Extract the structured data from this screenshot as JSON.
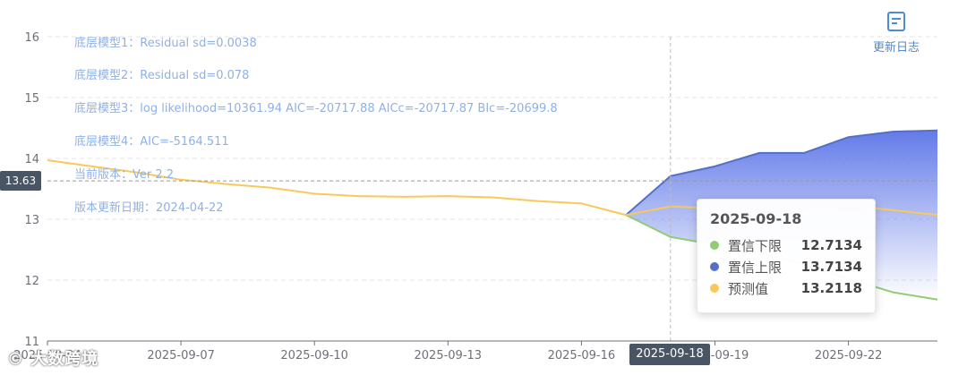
{
  "chart_data": {
    "type": "area",
    "ylim": [
      11,
      16
    ],
    "yticks": [
      11,
      12,
      13,
      14,
      15,
      16
    ],
    "x_dates": [
      "2025-09-04",
      "2025-09-05",
      "2025-09-06",
      "2025-09-07",
      "2025-09-08",
      "2025-09-09",
      "2025-09-10",
      "2025-09-11",
      "2025-09-12",
      "2025-09-13",
      "2025-09-14",
      "2025-09-15",
      "2025-09-16",
      "2025-09-17",
      "2025-09-18",
      "2025-09-19",
      "2025-09-20",
      "2025-09-21",
      "2025-09-22",
      "2025-09-23",
      "2025-09-24"
    ],
    "xtick_labels": [
      "2025-09-04",
      "2025-09-07",
      "2025-09-10",
      "2025-09-13",
      "2025-09-16",
      "2025-09-19",
      "2025-09-22"
    ],
    "series": [
      {
        "name": "置信下限",
        "color": "#91cc75",
        "start_index": 13,
        "values": [
          13.07,
          12.71,
          12.58,
          12.44,
          12.26,
          12.02,
          11.8,
          11.68
        ]
      },
      {
        "name": "置信上限",
        "color": "#5470c6",
        "start_index": 13,
        "values": [
          13.07,
          13.71,
          13.87,
          14.09,
          14.09,
          14.35,
          14.44,
          14.46
        ]
      },
      {
        "name": "预测值",
        "color": "#fac858",
        "start_index": 0,
        "values": [
          13.97,
          13.87,
          13.77,
          13.65,
          13.58,
          13.52,
          13.42,
          13.38,
          13.37,
          13.38,
          13.36,
          13.3,
          13.26,
          13.07,
          13.21,
          13.18,
          13.24,
          13.12,
          13.22,
          13.15,
          13.07
        ]
      }
    ],
    "crosshair": {
      "y": 13.63,
      "y_label": "13.63",
      "x_label": "2025-09-18"
    },
    "legend": "none",
    "grid": true
  },
  "notes": [
    "底层模型1：Residual sd=0.0038",
    "底层模型2：Residual sd=0.078",
    "底层模型3：log likelihood=10361.94 AIC=-20717.88 AICc=-20717.87 BIc=-20699.8",
    "底层模型4：AIC=-5164.511",
    "当前版本：Ver 2.2",
    "版本更新日期：2024-04-22"
  ],
  "update_button": {
    "label": "更新日志",
    "icon": "document-icon"
  },
  "tooltip": {
    "date": "2025-09-18",
    "rows": [
      {
        "name": "置信下限",
        "value": "12.7134",
        "color": "#91cc75"
      },
      {
        "name": "置信上限",
        "value": "13.7134",
        "color": "#5470c6"
      },
      {
        "name": "预测值",
        "value": "13.2118",
        "color": "#fac858"
      }
    ]
  },
  "watermark": "© 大数跨境"
}
